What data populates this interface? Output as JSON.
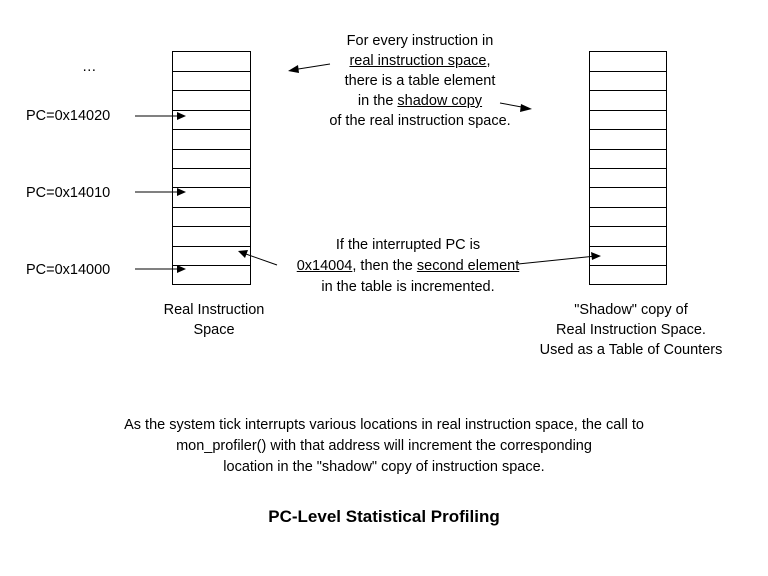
{
  "labels": {
    "ellipsis": "…",
    "pc_14020": "PC=0x14020",
    "pc_14010": "PC=0x14010",
    "pc_14000": "PC=0x14000"
  },
  "top_note": {
    "line1": "For every instruction in",
    "line2_underlined": "real instruction space",
    "line2_rest": ",",
    "line3": "there is a table element",
    "line4_pre": "in the ",
    "line4_underlined": "shadow copy",
    "line5": "of the real instruction space."
  },
  "mid_note": {
    "line1": "If the interrupted PC is",
    "line2_addr": "0x14004",
    "line2_mid": ", then the ",
    "line2_underlined": "second element",
    "line3": "in the table is incremented."
  },
  "real_caption": {
    "line1": "Real Instruction",
    "line2": "Space"
  },
  "shadow_caption": {
    "line1": "\"Shadow\" copy of",
    "line2": "Real Instruction Space.",
    "line3": "Used as a Table of Counters"
  },
  "bottom_note": {
    "line1": "As the system tick interrupts various locations in real instruction space, the call to",
    "line2": "mon_profiler() with that address will increment the corresponding",
    "line3": "location in the \"shadow\" copy of instruction space."
  },
  "title": "PC-Level Statistical Profiling"
}
